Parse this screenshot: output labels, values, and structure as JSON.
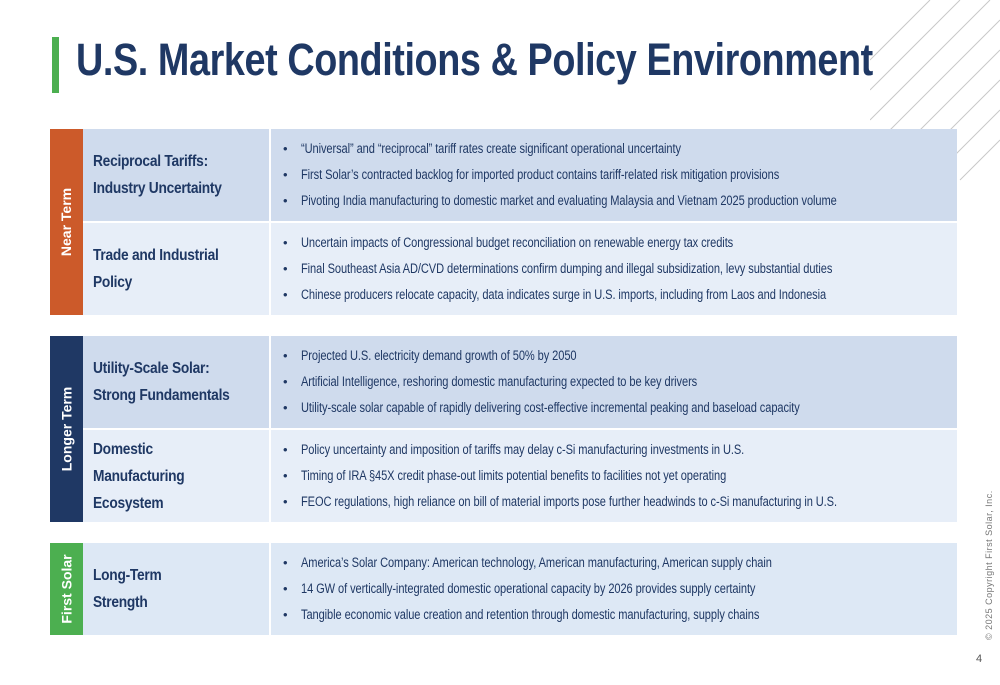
{
  "title": "U.S. Market Conditions & Policy Environment",
  "colors": {
    "near_term": "#cc5a2a",
    "longer_term": "#1f3864",
    "first_solar": "#4caf50",
    "title_accent": "#4caf50"
  },
  "sections": [
    {
      "tag": "Near Term",
      "rows": [
        {
          "label": "Reciprocal Tariffs:\nIndustry Uncertainty",
          "bullets": [
            "“Universal” and “reciprocal” tariff rates create significant operational uncertainty",
            "First Solar’s contracted backlog for imported product contains tariff-related risk mitigation provisions",
            "Pivoting India manufacturing to domestic market and evaluating Malaysia and Vietnam 2025 production volume"
          ]
        },
        {
          "label": "Trade and Industrial\nPolicy",
          "bullets": [
            "Uncertain impacts of Congressional budget reconciliation on renewable energy tax credits",
            "Final Southeast Asia AD/CVD determinations confirm dumping and illegal subsidization, levy substantial duties",
            "Chinese producers relocate capacity, data indicates surge in U.S. imports, including from Laos and Indonesia"
          ]
        }
      ]
    },
    {
      "tag": "Longer Term",
      "rows": [
        {
          "label": "Utility-Scale Solar:\nStrong Fundamentals",
          "bullets": [
            "Projected U.S. electricity demand growth of 50% by 2050",
            "Artificial Intelligence, reshoring domestic manufacturing expected to be key drivers",
            "Utility-scale solar capable of rapidly delivering cost-effective incremental peaking and baseload capacity"
          ]
        },
        {
          "label": "Domestic Manufacturing\nEcosystem",
          "bullets": [
            "Policy uncertainty and imposition of tariffs may delay c-Si manufacturing investments in U.S.",
            "Timing of IRA §45X credit phase-out limits potential benefits to facilities not yet operating",
            "FEOC regulations, high reliance on bill of material imports pose further headwinds to c-Si manufacturing in U.S."
          ]
        }
      ]
    },
    {
      "tag": "First Solar",
      "rows": [
        {
          "label": "Long-Term\nStrength",
          "bullets": [
            "America’s Solar Company: American technology, American manufacturing, American supply chain",
            "14 GW of vertically-integrated domestic operational capacity by 2026 provides supply certainty",
            "Tangible economic value creation and retention through domestic manufacturing, supply chains"
          ]
        }
      ]
    }
  ],
  "copyright": "© 2025 Copyright First Solar, Inc.",
  "page_number": "4"
}
